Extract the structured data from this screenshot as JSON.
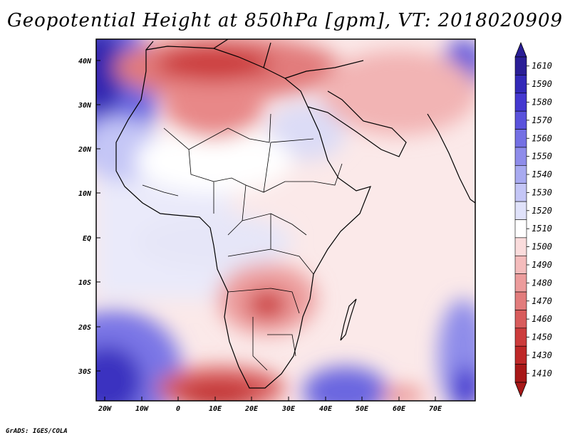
{
  "title": "Geopotential Height at 850hPa [gpm], VT: 2018020909",
  "credit": "GrADS: IGES/COLA",
  "lon_labels": [
    "20W",
    "10W",
    "0",
    "10E",
    "20E",
    "30E",
    "40E",
    "50E",
    "60E",
    "70E"
  ],
  "lat_labels": [
    "40N",
    "30N",
    "20N",
    "10N",
    "EQ",
    "10S",
    "20S",
    "30S"
  ],
  "colorbar": {
    "levels": [
      "1610",
      "1590",
      "1580",
      "1570",
      "1560",
      "1550",
      "1540",
      "1530",
      "1520",
      "1510",
      "1500",
      "1490",
      "1480",
      "1470",
      "1460",
      "1450",
      "1430",
      "1410"
    ],
    "colors": [
      "#2a1e96",
      "#3329b8",
      "#4438d0",
      "#5a52dc",
      "#7470e4",
      "#8e8cea",
      "#a8aaf0",
      "#c4c6f6",
      "#e0e2fa",
      "#ffffff",
      "#fadcdc",
      "#f4bcbc",
      "#ec9c9c",
      "#e27c7c",
      "#d85c5c",
      "#cc3c3c",
      "#be2828",
      "#a81818"
    ]
  }
}
